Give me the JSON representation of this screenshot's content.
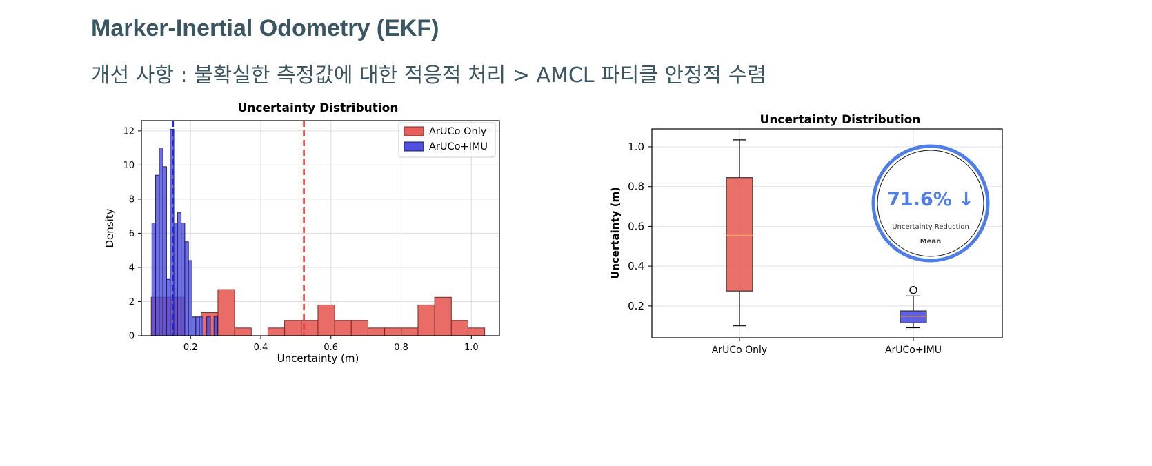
{
  "header": {
    "title": "Marker-Inertial Odometry (EKF)",
    "subtitle": "개선 사항 : 불확실한 측정값에 대한 적응적 처리 > AMCL 파티클 안정적 수렴"
  },
  "colors": {
    "header_text": "#3a5663",
    "red": "#e8605a",
    "blue": "#4f4fe0",
    "red_line": "#e8403c",
    "blue_line": "#2626d9",
    "badge_ring": "#4e7ee6",
    "median": "#f5a25a"
  },
  "chart_data": [
    {
      "type": "histogram",
      "title": "Uncertainty Distribution",
      "xlabel": "Uncertainty (m)",
      "ylabel": "Density",
      "xlim": [
        0.06,
        1.08
      ],
      "ylim": [
        0,
        12.6
      ],
      "xticks": [
        "0.2",
        "0.4",
        "0.6",
        "0.8",
        "1.0"
      ],
      "yticks": [
        "0",
        "2",
        "4",
        "6",
        "8",
        "10",
        "12"
      ],
      "grid": true,
      "legend_position": "top-right",
      "series": [
        {
          "name": "ArUCo Only",
          "color": "#e8605a",
          "bin_width": 0.0475,
          "bins": [
            {
              "x0": 0.088,
              "h": 2.25
            },
            {
              "x0": 0.1355,
              "h": 2.25
            },
            {
              "x0": 0.183,
              "h": 0.0
            },
            {
              "x0": 0.2305,
              "h": 1.35
            },
            {
              "x0": 0.278,
              "h": 2.7
            },
            {
              "x0": 0.3255,
              "h": 0.45
            },
            {
              "x0": 0.373,
              "h": 0.0
            },
            {
              "x0": 0.4205,
              "h": 0.45
            },
            {
              "x0": 0.468,
              "h": 0.9
            },
            {
              "x0": 0.5155,
              "h": 0.9
            },
            {
              "x0": 0.563,
              "h": 1.8
            },
            {
              "x0": 0.6105,
              "h": 0.9
            },
            {
              "x0": 0.658,
              "h": 0.9
            },
            {
              "x0": 0.7055,
              "h": 0.45
            },
            {
              "x0": 0.753,
              "h": 0.45
            },
            {
              "x0": 0.8005,
              "h": 0.45
            },
            {
              "x0": 0.848,
              "h": 1.8
            },
            {
              "x0": 0.8955,
              "h": 2.25
            },
            {
              "x0": 0.943,
              "h": 0.9
            },
            {
              "x0": 0.9905,
              "h": 0.45
            }
          ],
          "mean": 0.523
        },
        {
          "name": "ArUCo+IMU",
          "color": "#4f4fe0",
          "bin_width": 0.0104,
          "bins": [
            {
              "x0": 0.09,
              "h": 6.6
            },
            {
              "x0": 0.1004,
              "h": 9.4
            },
            {
              "x0": 0.1108,
              "h": 11.0
            },
            {
              "x0": 0.1212,
              "h": 9.9
            },
            {
              "x0": 0.1316,
              "h": 3.3
            },
            {
              "x0": 0.142,
              "h": 12.1
            },
            {
              "x0": 0.1524,
              "h": 6.6
            },
            {
              "x0": 0.1628,
              "h": 7.2
            },
            {
              "x0": 0.1732,
              "h": 6.6
            },
            {
              "x0": 0.1836,
              "h": 5.5
            },
            {
              "x0": 0.194,
              "h": 4.4
            },
            {
              "x0": 0.2044,
              "h": 1.1
            },
            {
              "x0": 0.2148,
              "h": 1.1
            },
            {
              "x0": 0.2252,
              "h": 1.1
            },
            {
              "x0": 0.2356,
              "h": 0.0
            },
            {
              "x0": 0.246,
              "h": 1.1
            },
            {
              "x0": 0.2564,
              "h": 0.0
            },
            {
              "x0": 0.2668,
              "h": 1.1
            }
          ],
          "mean": 0.15
        }
      ]
    },
    {
      "type": "boxplot",
      "title": "Uncertainty Distribution",
      "ylabel": "Uncertainty (m)",
      "ylim": [
        0.04,
        1.09
      ],
      "yticks": [
        "0.2",
        "0.4",
        "0.6",
        "0.8",
        "1.0"
      ],
      "categories": [
        "ArUCo Only",
        "ArUCo+IMU"
      ],
      "grid": true,
      "boxes": [
        {
          "name": "ArUCo Only",
          "whisker_low": 0.1,
          "q1": 0.275,
          "median": 0.555,
          "q3": 0.845,
          "whisker_high": 1.035,
          "outliers": [],
          "color": "#e8605a"
        },
        {
          "name": "ArUCo+IMU",
          "whisker_low": 0.09,
          "q1": 0.115,
          "median": 0.148,
          "q3": 0.175,
          "whisker_high": 0.25,
          "outliers": [
            0.28
          ],
          "color": "#4f4fe0"
        }
      ],
      "annotation": {
        "value": "71.6% ↓",
        "label": "Uncertainty Reduction",
        "sublabel": "Mean"
      }
    }
  ]
}
